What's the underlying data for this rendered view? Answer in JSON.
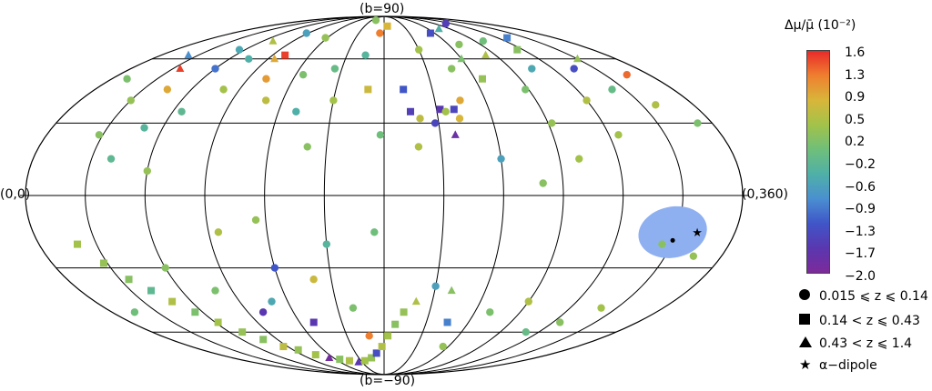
{
  "chart_data": {
    "type": "scatter",
    "projection": "mollweide",
    "title": "",
    "pole_labels": {
      "top": "(b=90)",
      "bottom": "(b=−90)",
      "left": "(0,0)",
      "right": "(0,360)"
    },
    "colorbar": {
      "label": "Δμ/μ̄ (10⁻²)",
      "ticks": [
        "1.6",
        "1.3",
        "0.9",
        "0.5",
        "0.2",
        "−0.2",
        "−0.6",
        "−0.9",
        "−1.3",
        "−1.7",
        "−2.0"
      ],
      "range": [
        -2.0,
        1.6
      ],
      "colors": [
        "#e82a2a",
        "#ef7f2f",
        "#d8b63a",
        "#a2c24a",
        "#6fbf7a",
        "#4fb0a8",
        "#4a8fd0",
        "#3f55c8",
        "#5a37b0",
        "#7d2a9a"
      ]
    },
    "legend": [
      {
        "symbol": "circle",
        "label": "0.015 ⩽ z ⩽ 0.14"
      },
      {
        "symbol": "square",
        "label": "0.14 < z ⩽ 0.43"
      },
      {
        "symbol": "triangle",
        "label": "0.43 < z ⩽ 1.4"
      },
      {
        "symbol": "star",
        "label": "α−dipole"
      }
    ],
    "dipole": {
      "l": 328,
      "b": -15,
      "region_color": "#8fb0f0"
    },
    "points": [
      {
        "l": 10,
        "b": 50,
        "v": 0.1,
        "s": "c"
      },
      {
        "l": 22,
        "b": 62,
        "v": -0.8,
        "s": "t"
      },
      {
        "l": 35,
        "b": 55,
        "v": 1.5,
        "s": "t"
      },
      {
        "l": 30,
        "b": 40,
        "v": 0.3,
        "s": "c"
      },
      {
        "l": 45,
        "b": 45,
        "v": 0.9,
        "s": "c"
      },
      {
        "l": 28,
        "b": 25,
        "v": 0.2,
        "s": "c"
      },
      {
        "l": 50,
        "b": 28,
        "v": -0.3,
        "s": "c"
      },
      {
        "l": 55,
        "b": 65,
        "v": -0.5,
        "s": "c"
      },
      {
        "l": 60,
        "b": 55,
        "v": -1.0,
        "s": "c"
      },
      {
        "l": 65,
        "b": 35,
        "v": -0.2,
        "s": "c"
      },
      {
        "l": 70,
        "b": 70,
        "v": 0.5,
        "s": "t"
      },
      {
        "l": 75,
        "b": 60,
        "v": -0.4,
        "s": "c"
      },
      {
        "l": 80,
        "b": 45,
        "v": 0.4,
        "s": "c"
      },
      {
        "l": 88,
        "b": 75,
        "v": -0.6,
        "s": "c"
      },
      {
        "l": 95,
        "b": 60,
        "v": 0.9,
        "s": "t"
      },
      {
        "l": 100,
        "b": 62,
        "v": 1.5,
        "s": "s"
      },
      {
        "l": 102,
        "b": 50,
        "v": 1.0,
        "s": "c"
      },
      {
        "l": 110,
        "b": 40,
        "v": 0.6,
        "s": "c"
      },
      {
        "l": 118,
        "b": 72,
        "v": 0.3,
        "s": "c"
      },
      {
        "l": 125,
        "b": 52,
        "v": 0.1,
        "s": "c"
      },
      {
        "l": 130,
        "b": 35,
        "v": -0.4,
        "s": "c"
      },
      {
        "l": 140,
        "b": 20,
        "v": 0.2,
        "s": "c"
      },
      {
        "l": 145,
        "b": 55,
        "v": -0.1,
        "s": "c"
      },
      {
        "l": 150,
        "b": 40,
        "v": 0.4,
        "s": "c"
      },
      {
        "l": 160,
        "b": 85,
        "v": 0.2,
        "s": "c"
      },
      {
        "l": 165,
        "b": 62,
        "v": -0.3,
        "s": "c"
      },
      {
        "l": 170,
        "b": 45,
        "v": 0.7,
        "s": "s"
      },
      {
        "l": 175,
        "b": 75,
        "v": 1.2,
        "s": "c"
      },
      {
        "l": 178,
        "b": 25,
        "v": 0.0,
        "s": "c"
      },
      {
        "l": 185,
        "b": 80,
        "v": 0.8,
        "s": "s"
      },
      {
        "l": 192,
        "b": 45,
        "v": -1.2,
        "s": "s"
      },
      {
        "l": 195,
        "b": 35,
        "v": -1.5,
        "s": "s"
      },
      {
        "l": 200,
        "b": 32,
        "v": 0.6,
        "s": "c"
      },
      {
        "l": 198,
        "b": 20,
        "v": 0.5,
        "s": "c"
      },
      {
        "l": 208,
        "b": 30,
        "v": -1.4,
        "s": "c"
      },
      {
        "l": 212,
        "b": 36,
        "v": -1.6,
        "s": "s"
      },
      {
        "l": 215,
        "b": 35,
        "v": 0.4,
        "s": "c"
      },
      {
        "l": 220,
        "b": 36,
        "v": -1.4,
        "s": "s"
      },
      {
        "l": 218,
        "b": 25,
        "v": -1.8,
        "s": "t"
      },
      {
        "l": 222,
        "b": 32,
        "v": 0.8,
        "s": "c"
      },
      {
        "l": 225,
        "b": 40,
        "v": 0.9,
        "s": "c"
      },
      {
        "l": 210,
        "b": 65,
        "v": 0.4,
        "s": "c"
      },
      {
        "l": 228,
        "b": 55,
        "v": 0.2,
        "s": "c"
      },
      {
        "l": 235,
        "b": 75,
        "v": -1.3,
        "s": "s"
      },
      {
        "l": 240,
        "b": 60,
        "v": 0.1,
        "s": "t"
      },
      {
        "l": 245,
        "b": 50,
        "v": 0.3,
        "s": "s"
      },
      {
        "l": 250,
        "b": 68,
        "v": 0.2,
        "s": "c"
      },
      {
        "l": 255,
        "b": 78,
        "v": -0.4,
        "s": "t"
      },
      {
        "l": 262,
        "b": 62,
        "v": 0.5,
        "s": "t"
      },
      {
        "l": 268,
        "b": 45,
        "v": 0.1,
        "s": "c"
      },
      {
        "l": 272,
        "b": 30,
        "v": 0.3,
        "s": "c"
      },
      {
        "l": 278,
        "b": 70,
        "v": 0.0,
        "s": "c"
      },
      {
        "l": 285,
        "b": 55,
        "v": -0.5,
        "s": "c"
      },
      {
        "l": 290,
        "b": 82,
        "v": -1.5,
        "s": "c"
      },
      {
        "l": 295,
        "b": 65,
        "v": 0.2,
        "s": "s"
      },
      {
        "l": 300,
        "b": 40,
        "v": 0.5,
        "s": "c"
      },
      {
        "l": 305,
        "b": 25,
        "v": 0.4,
        "s": "c"
      },
      {
        "l": 310,
        "b": 72,
        "v": -0.9,
        "s": "s"
      },
      {
        "l": 315,
        "b": 55,
        "v": -1.3,
        "s": "c"
      },
      {
        "l": 322,
        "b": 45,
        "v": -0.1,
        "s": "c"
      },
      {
        "l": 330,
        "b": 60,
        "v": 0.3,
        "s": "t"
      },
      {
        "l": 338,
        "b": 38,
        "v": 0.5,
        "s": "c"
      },
      {
        "l": 345,
        "b": 52,
        "v": 1.3,
        "s": "c"
      },
      {
        "l": 352,
        "b": 30,
        "v": 0.1,
        "s": "c"
      },
      {
        "l": 20,
        "b": -20,
        "v": 0.4,
        "s": "s"
      },
      {
        "l": 28,
        "b": -28,
        "v": 0.3,
        "s": "s"
      },
      {
        "l": 35,
        "b": -35,
        "v": 0.2,
        "s": "s"
      },
      {
        "l": 42,
        "b": -40,
        "v": -0.2,
        "s": "s"
      },
      {
        "l": 48,
        "b": -45,
        "v": 0.5,
        "s": "s"
      },
      {
        "l": 55,
        "b": -50,
        "v": 0.1,
        "s": "s"
      },
      {
        "l": 62,
        "b": -55,
        "v": 0.4,
        "s": "s"
      },
      {
        "l": 70,
        "b": -60,
        "v": 0.3,
        "s": "s"
      },
      {
        "l": 78,
        "b": -64,
        "v": 0.2,
        "s": "s"
      },
      {
        "l": 86,
        "b": -68,
        "v": 0.6,
        "s": "s"
      },
      {
        "l": 95,
        "b": -70,
        "v": 0.3,
        "s": "s"
      },
      {
        "l": 105,
        "b": -73,
        "v": 0.4,
        "s": "s"
      },
      {
        "l": 115,
        "b": -75,
        "v": -1.9,
        "s": "t"
      },
      {
        "l": 125,
        "b": -76,
        "v": 0.2,
        "s": "s"
      },
      {
        "l": 135,
        "b": -77,
        "v": 0.5,
        "s": "s"
      },
      {
        "l": 145,
        "b": -78,
        "v": -1.6,
        "s": "t"
      },
      {
        "l": 155,
        "b": -77,
        "v": 0.4,
        "s": "s"
      },
      {
        "l": 165,
        "b": -75,
        "v": 0.3,
        "s": "s"
      },
      {
        "l": 172,
        "b": -72,
        "v": -1.3,
        "s": "s"
      },
      {
        "l": 178,
        "b": -68,
        "v": 0.5,
        "s": "s"
      },
      {
        "l": 183,
        "b": -62,
        "v": 0.4,
        "s": "s"
      },
      {
        "l": 188,
        "b": -56,
        "v": 0.2,
        "s": "s"
      },
      {
        "l": 193,
        "b": -50,
        "v": 0.3,
        "s": "s"
      },
      {
        "l": 100,
        "b": -50,
        "v": -1.6,
        "s": "c"
      },
      {
        "l": 110,
        "b": -45,
        "v": -0.5,
        "s": "c"
      },
      {
        "l": 120,
        "b": -30,
        "v": -1.2,
        "s": "c"
      },
      {
        "l": 130,
        "b": -55,
        "v": -1.6,
        "s": "s"
      },
      {
        "l": 140,
        "b": -35,
        "v": 0.7,
        "s": "c"
      },
      {
        "l": 150,
        "b": -20,
        "v": -0.3,
        "s": "c"
      },
      {
        "l": 160,
        "b": -48,
        "v": 0.1,
        "s": "c"
      },
      {
        "l": 168,
        "b": -62,
        "v": 1.2,
        "s": "c"
      },
      {
        "l": 175,
        "b": -15,
        "v": 0.0,
        "s": "c"
      },
      {
        "l": 200,
        "b": -45,
        "v": 0.5,
        "s": "t"
      },
      {
        "l": 210,
        "b": -38,
        "v": -0.6,
        "s": "c"
      },
      {
        "l": 220,
        "b": -40,
        "v": 0.2,
        "s": "t"
      },
      {
        "l": 225,
        "b": -55,
        "v": -0.9,
        "s": "s"
      },
      {
        "l": 235,
        "b": -68,
        "v": 0.3,
        "s": "c"
      },
      {
        "l": 250,
        "b": -50,
        "v": 0.1,
        "s": "c"
      },
      {
        "l": 270,
        "b": -45,
        "v": 0.5,
        "s": "c"
      },
      {
        "l": 290,
        "b": -60,
        "v": -0.1,
        "s": "c"
      },
      {
        "l": 320,
        "b": -48,
        "v": 0.4,
        "s": "c"
      },
      {
        "l": 325,
        "b": -20,
        "v": 0.2,
        "s": "c"
      },
      {
        "l": 345,
        "b": -25,
        "v": 0.3,
        "s": "c"
      },
      {
        "l": 15,
        "b": -50,
        "v": 0.0,
        "s": "c"
      },
      {
        "l": 60,
        "b": -30,
        "v": 0.2,
        "s": "c"
      },
      {
        "l": 80,
        "b": -40,
        "v": 0.1,
        "s": "c"
      },
      {
        "l": 95,
        "b": -15,
        "v": 0.5,
        "s": "c"
      },
      {
        "l": 115,
        "b": -10,
        "v": 0.3,
        "s": "c"
      },
      {
        "l": 305,
        "b": -55,
        "v": 0.2,
        "s": "c"
      },
      {
        "l": 60,
        "b": 10,
        "v": 0.3,
        "s": "c"
      },
      {
        "l": 40,
        "b": 15,
        "v": -0.2,
        "s": "c"
      },
      {
        "l": 260,
        "b": 5,
        "v": 0.2,
        "s": "c"
      },
      {
        "l": 280,
        "b": 15,
        "v": 0.4,
        "s": "c"
      },
      {
        "l": 240,
        "b": 15,
        "v": -0.6,
        "s": "c"
      }
    ]
  }
}
